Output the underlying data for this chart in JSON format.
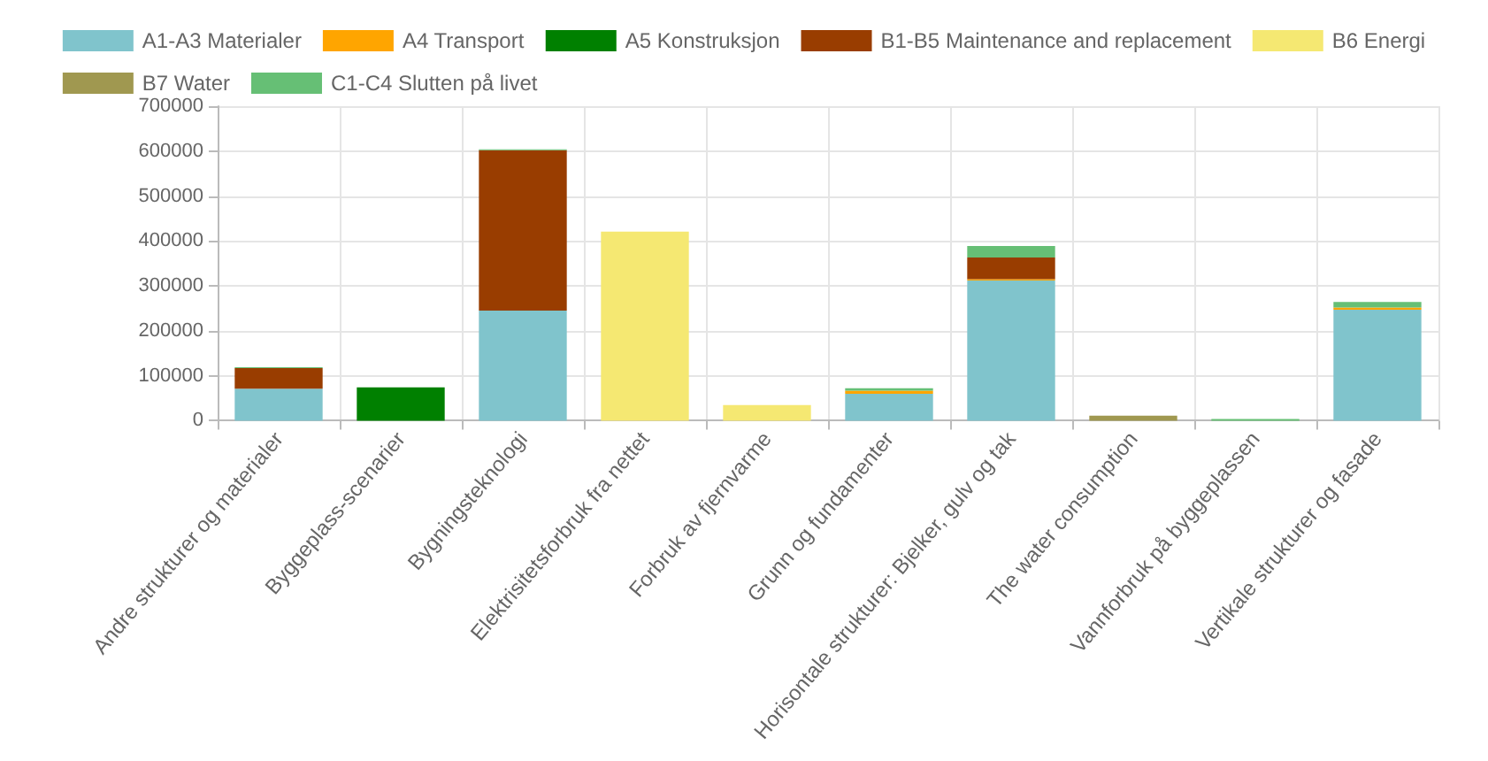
{
  "chart_data": {
    "type": "bar",
    "stacked": true,
    "legend": "top",
    "grid": true,
    "ylim": [
      0,
      700000
    ],
    "yticks": [
      0,
      100000,
      200000,
      300000,
      400000,
      500000,
      600000,
      700000
    ],
    "categories": [
      "Andre strukturer og materialer",
      "Byggeplass-scenarier",
      "Bygningsteknologi",
      "Elektrisitetsforbruk fra nettet",
      "Forbruk av fjernvarme",
      "Grunn og fundamenter",
      "Horisontale strukturer: Bjelker, gulv og tak",
      "The water consumption",
      "Vannforbruk på byggeplassen",
      "Vertikale strukturer og fasade"
    ],
    "series": [
      {
        "name": "A1-A3 Materialer",
        "color": "#80c4cc",
        "values": [
          71000,
          null,
          245000,
          null,
          null,
          60000,
          312000,
          null,
          null,
          247000
        ]
      },
      {
        "name": "A4 Transport",
        "color": "#ffa500",
        "values": [
          null,
          null,
          null,
          null,
          null,
          7000,
          3000,
          null,
          null,
          5000
        ]
      },
      {
        "name": "A5 Konstruksjon",
        "color": "#008000",
        "values": [
          null,
          74000,
          null,
          null,
          null,
          null,
          null,
          null,
          null,
          null
        ]
      },
      {
        "name": "B1-B5 Maintenance and replacement",
        "color": "#993d00",
        "values": [
          46000,
          null,
          357000,
          null,
          null,
          null,
          48000,
          null,
          null,
          null
        ]
      },
      {
        "name": "B6 Energi",
        "color": "#f5e872",
        "values": [
          null,
          null,
          null,
          421000,
          35000,
          null,
          null,
          null,
          null,
          null
        ]
      },
      {
        "name": "B7 Water",
        "color": "#a09850",
        "values": [
          null,
          null,
          null,
          null,
          null,
          null,
          null,
          11000,
          null,
          null
        ]
      },
      {
        "name": "C1-C4 Slutten på livet",
        "color": "#66bf75",
        "values": [
          2000,
          null,
          2000,
          null,
          null,
          5000,
          26000,
          null,
          4000,
          12000
        ]
      }
    ]
  }
}
